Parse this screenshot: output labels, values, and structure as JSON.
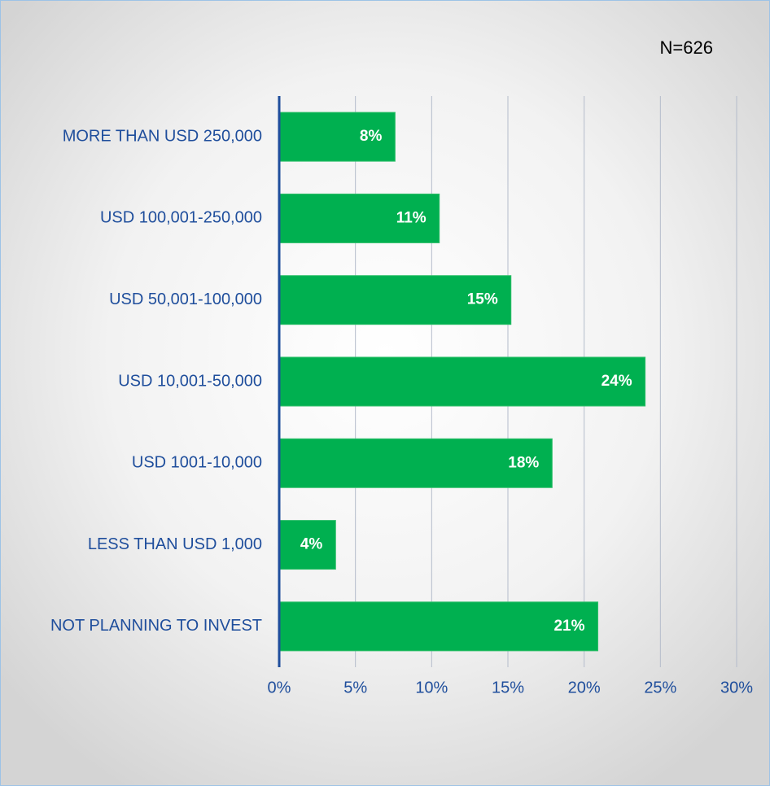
{
  "chart_data": {
    "type": "bar",
    "orientation": "horizontal",
    "annotation": "N=626",
    "categories": [
      "MORE THAN USD 250,000",
      "USD 100,001-250,000",
      "USD 50,001-100,000",
      "USD 10,001-50,000",
      "USD 1001-10,000",
      "LESS THAN USD 1,000",
      "NOT PLANNING TO INVEST"
    ],
    "values": [
      7.6,
      10.5,
      15.2,
      24.0,
      17.9,
      3.7,
      20.9
    ],
    "value_labels": [
      "8%",
      "11%",
      "15%",
      "24%",
      "18%",
      "4%",
      "21%"
    ],
    "color": "#00b050",
    "xlim": [
      0,
      30
    ],
    "xticks": [
      {
        "value": 0,
        "label": "0%"
      },
      {
        "value": 5,
        "label": "5%"
      },
      {
        "value": 10,
        "label": "10%"
      },
      {
        "value": 15,
        "label": "15%"
      },
      {
        "value": 20,
        "label": "20%"
      },
      {
        "value": 25,
        "label": "25%"
      },
      {
        "value": 30,
        "label": "30%"
      }
    ],
    "grid": true
  }
}
